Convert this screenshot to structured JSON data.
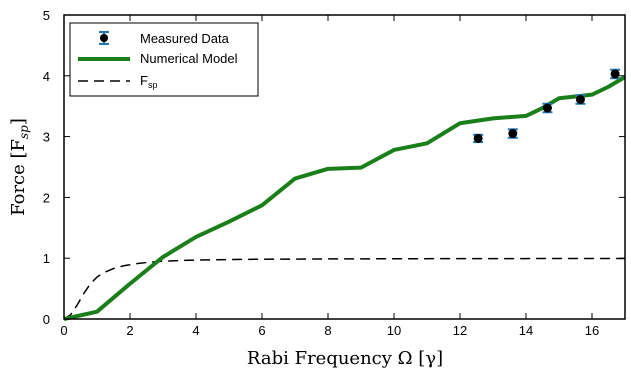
{
  "chart_data": {
    "type": "line",
    "xlabel": "Rabi Frequency Ω [γ]",
    "ylabel": "Force [F",
    "ylabel_sub": "sp",
    "ylabel_close": "]",
    "xlim": [
      0,
      17
    ],
    "ylim": [
      0,
      5
    ],
    "xticks": [
      0,
      2,
      4,
      6,
      8,
      10,
      12,
      14,
      16
    ],
    "yticks": [
      0,
      1,
      2,
      3,
      4,
      5
    ],
    "grid": false,
    "legend_position": "top-left",
    "series": [
      {
        "name": "Measured Data",
        "kind": "errorbar",
        "color": "#000000",
        "errorbar_color": "#1f77b4",
        "x": [
          12.55,
          13.6,
          14.65,
          15.65,
          16.7
        ],
        "y": [
          2.97,
          3.05,
          3.47,
          3.61,
          4.03
        ],
        "yerr": [
          0.06,
          0.07,
          0.07,
          0.07,
          0.07
        ]
      },
      {
        "name": "Numerical Model",
        "kind": "line",
        "color": "#1a7f1a",
        "x": [
          0,
          1,
          2,
          3,
          4,
          5,
          6,
          7,
          8,
          9,
          10,
          11,
          12,
          13,
          14,
          14.5,
          15,
          15.5,
          16,
          16.5,
          17
        ],
        "y": [
          0,
          0.12,
          0.58,
          1.02,
          1.35,
          1.6,
          1.87,
          2.31,
          2.47,
          2.49,
          2.78,
          2.89,
          3.22,
          3.3,
          3.34,
          3.47,
          3.63,
          3.66,
          3.69,
          3.82,
          3.98
        ]
      },
      {
        "name": "F",
        "name_sub": "sp",
        "kind": "dashed",
        "color": "#000000",
        "x": [
          0,
          0.2,
          0.4,
          0.6,
          0.8,
          1,
          1.2,
          1.5,
          1.8,
          2.2,
          2.6,
          3,
          3.5,
          4,
          5,
          6,
          8,
          10,
          12,
          14,
          16,
          17
        ],
        "y": [
          0,
          0.07,
          0.23,
          0.42,
          0.58,
          0.69,
          0.76,
          0.83,
          0.875,
          0.91,
          0.935,
          0.95,
          0.962,
          0.97,
          0.978,
          0.983,
          0.988,
          0.991,
          0.993,
          0.994,
          0.995,
          0.996
        ]
      }
    ]
  }
}
